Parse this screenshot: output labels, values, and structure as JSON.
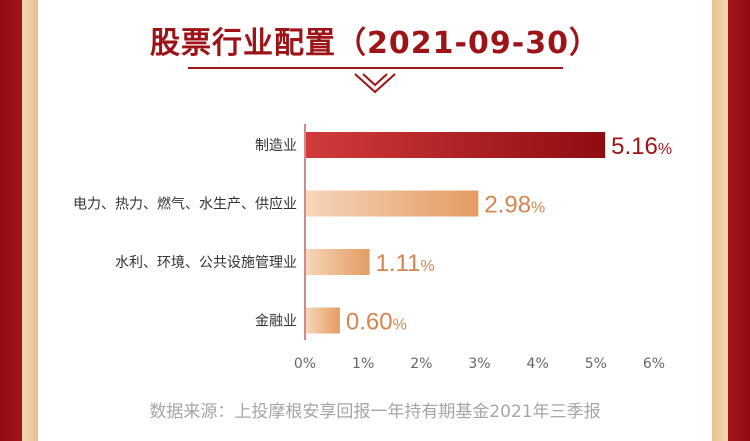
{
  "title": "股票行业配置（2021-09-30）",
  "source": "数据来源：上投摩根安享回报一年持有期基金2021年三季报",
  "colors": {
    "primary_bar_start": "#d23a3c",
    "primary_bar_end": "#8e0c10",
    "secondary_bar_start": "#f6d6ba",
    "secondary_bar_end": "#e49b62",
    "primary_label": "#9d1418",
    "secondary_label": "#d58550",
    "axis": "#9d1418",
    "tick": "#666666"
  },
  "chart_data": {
    "type": "bar",
    "orientation": "horizontal",
    "categories": [
      "制造业",
      "电力、热力、燃气、水生产、供应业",
      "水利、环境、公共设施管理业",
      "金融业"
    ],
    "values": [
      5.16,
      2.98,
      1.11,
      0.6
    ],
    "value_labels": [
      "5.16",
      "2.98",
      "1.11",
      "0.60"
    ],
    "value_unit": "%",
    "xlim": [
      0,
      6
    ],
    "xticks": [
      "0%",
      "1%",
      "2%",
      "3%",
      "4%",
      "5%",
      "6%"
    ],
    "grid": false
  }
}
